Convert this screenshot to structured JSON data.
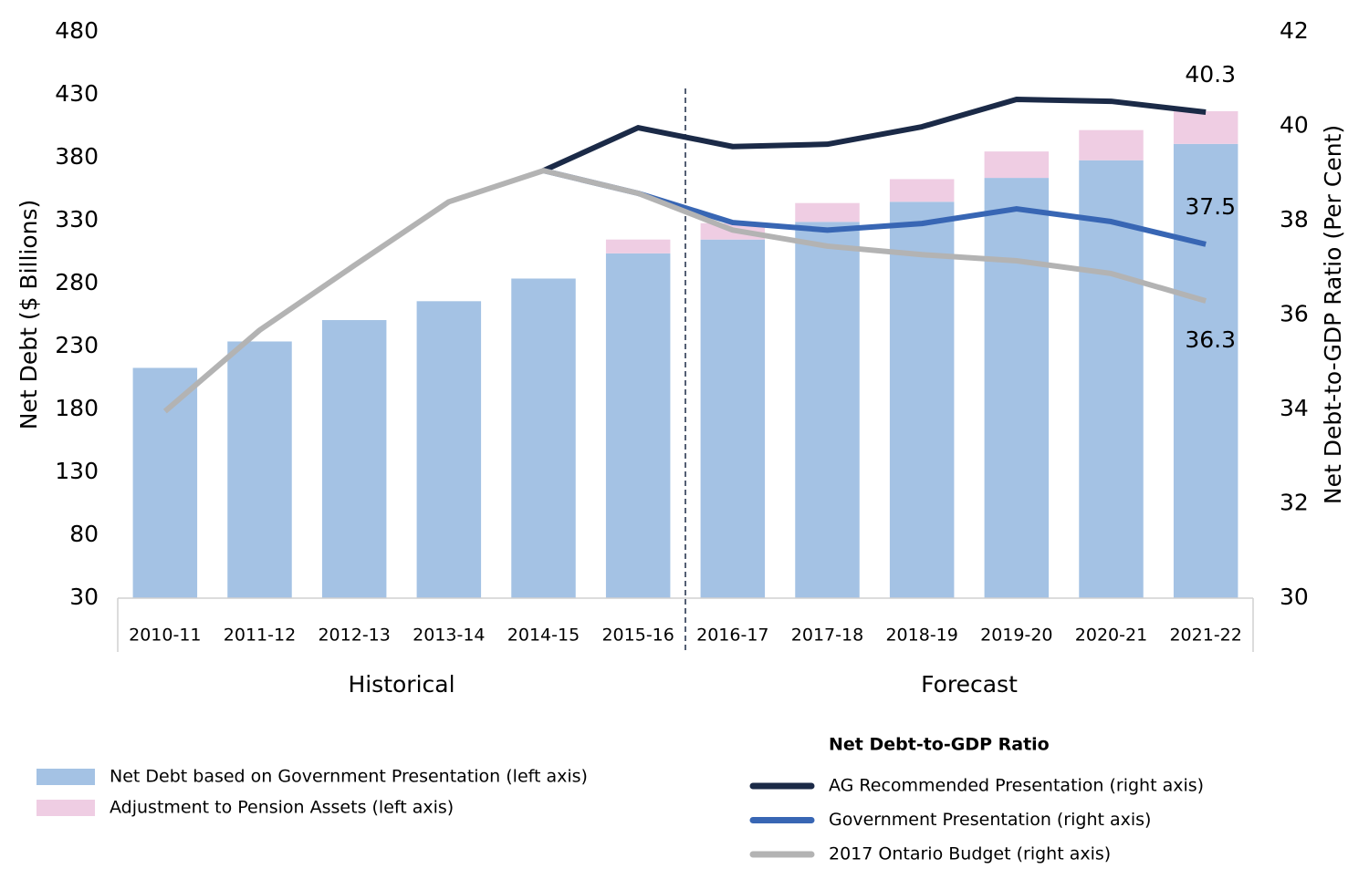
{
  "chart_data": {
    "type": "combo",
    "y_label": "Net Debt ($ Billions)",
    "y2_label": "Net Debt-to-GDP Ratio (Per Cent)",
    "categories": [
      "2010-11",
      "2011-12",
      "2012-13",
      "2013-14",
      "2014-15",
      "2015-16",
      "2016-17",
      "2017-18",
      "2018-19",
      "2019-20",
      "2020-21",
      "2021-22"
    ],
    "category_groups": [
      "Historical",
      "Forecast"
    ],
    "ylim": [
      30,
      480
    ],
    "yticks": [
      30,
      80,
      130,
      180,
      230,
      280,
      330,
      380,
      430,
      480
    ],
    "y2lim": [
      30,
      42
    ],
    "y2ticks": [
      30,
      32,
      34,
      36,
      38,
      40,
      42
    ],
    "legend_title": "Net Debt-to-GDP Ratio",
    "series": [
      {
        "name": "Net Debt based on Government Presentation (left axis)",
        "type": "bar",
        "color": "#a4c2e4",
        "values": [
          213,
          234,
          251,
          266,
          284,
          304,
          315,
          329,
          345,
          364,
          378,
          391
        ]
      },
      {
        "name": "Adjustment to Pension Assets (left axis)",
        "type": "bar",
        "color": "#efcde3",
        "values": [
          null,
          null,
          null,
          null,
          null,
          11,
          13,
          15,
          18,
          21,
          24,
          26
        ]
      },
      {
        "name": "AG Recommended Presentation (right axis)",
        "type": "line",
        "axis": "y2",
        "color": "#1b2a47",
        "values": [
          null,
          null,
          null,
          null,
          39.06,
          39.97,
          39.57,
          39.62,
          39.99,
          40.57,
          40.53,
          40.3
        ]
      },
      {
        "name": "Government Presentation (right axis)",
        "type": "line",
        "axis": "y2",
        "color": "#3866b4",
        "values": [
          null,
          null,
          null,
          null,
          39.06,
          38.58,
          37.96,
          37.8,
          37.94,
          38.25,
          37.98,
          37.5
        ]
      },
      {
        "name": "2017 Ontario Budget (right axis)",
        "type": "line",
        "axis": "y2",
        "color": "#b3b3b3",
        "values": [
          33.96,
          35.68,
          37.05,
          38.4,
          39.06,
          38.58,
          37.8,
          37.46,
          37.28,
          37.15,
          36.88,
          36.3
        ]
      }
    ]
  }
}
